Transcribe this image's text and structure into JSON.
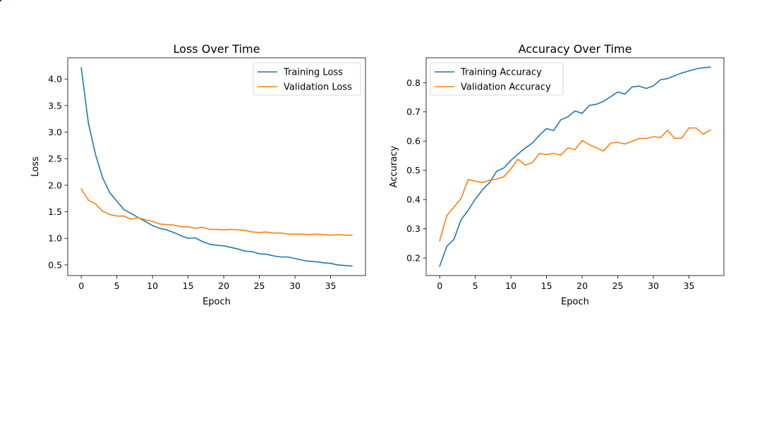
{
  "chart_data": [
    {
      "type": "line",
      "title": "Loss Over Time",
      "xlabel": "Epoch",
      "ylabel": "Loss",
      "xlim": [
        -1.9,
        39.9
      ],
      "ylim": [
        0.3,
        4.4
      ],
      "xticks": [
        0,
        5,
        10,
        15,
        20,
        25,
        30,
        35
      ],
      "yticks": [
        0.5,
        1.0,
        1.5,
        2.0,
        2.5,
        3.0,
        3.5,
        4.0
      ],
      "ytick_labels": [
        "0.5",
        "1.0",
        "1.5",
        "2.0",
        "2.5",
        "3.0",
        "3.5",
        "4.0"
      ],
      "grid": false,
      "legend": "upper-right",
      "x": [
        0,
        1,
        2,
        3,
        4,
        5,
        6,
        7,
        8,
        9,
        10,
        11,
        12,
        13,
        14,
        15,
        16,
        17,
        18,
        19,
        20,
        21,
        22,
        23,
        24,
        25,
        26,
        27,
        28,
        29,
        30,
        31,
        32,
        33,
        34,
        35,
        36,
        37,
        38
      ],
      "series": [
        {
          "name": "Training Loss",
          "color": "#1f77b4",
          "values": [
            4.21,
            3.17,
            2.58,
            2.14,
            1.86,
            1.7,
            1.54,
            1.47,
            1.39,
            1.32,
            1.24,
            1.19,
            1.16,
            1.11,
            1.05,
            1.0,
            1.01,
            0.94,
            0.89,
            0.87,
            0.86,
            0.83,
            0.8,
            0.76,
            0.75,
            0.71,
            0.7,
            0.67,
            0.65,
            0.65,
            0.62,
            0.59,
            0.57,
            0.56,
            0.54,
            0.53,
            0.5,
            0.49,
            0.48
          ]
        },
        {
          "name": "Validation Loss",
          "color": "#ff7f0e",
          "values": [
            1.93,
            1.72,
            1.65,
            1.51,
            1.45,
            1.42,
            1.42,
            1.36,
            1.39,
            1.35,
            1.32,
            1.27,
            1.26,
            1.25,
            1.22,
            1.22,
            1.19,
            1.21,
            1.17,
            1.17,
            1.16,
            1.17,
            1.16,
            1.15,
            1.12,
            1.11,
            1.12,
            1.1,
            1.1,
            1.08,
            1.08,
            1.08,
            1.07,
            1.08,
            1.07,
            1.06,
            1.07,
            1.06,
            1.06
          ]
        }
      ]
    },
    {
      "type": "line",
      "title": "Accuracy Over Time",
      "xlabel": "Epoch",
      "ylabel": "Accuracy",
      "xlim": [
        -1.9,
        39.9
      ],
      "ylim": [
        0.14,
        0.885
      ],
      "xticks": [
        0,
        5,
        10,
        15,
        20,
        25,
        30,
        35
      ],
      "yticks": [
        0.2,
        0.3,
        0.4,
        0.5,
        0.6,
        0.7,
        0.8
      ],
      "ytick_labels": [
        "0.2",
        "0.3",
        "0.4",
        "0.5",
        "0.6",
        "0.7",
        "0.8"
      ],
      "grid": false,
      "legend": "upper-left",
      "x": [
        0,
        1,
        2,
        3,
        4,
        5,
        6,
        7,
        8,
        9,
        10,
        11,
        12,
        13,
        14,
        15,
        16,
        17,
        18,
        19,
        20,
        21,
        22,
        23,
        24,
        25,
        26,
        27,
        28,
        29,
        30,
        31,
        32,
        33,
        34,
        35,
        36,
        37,
        38
      ],
      "series": [
        {
          "name": "Training Accuracy",
          "color": "#1f77b4",
          "values": [
            0.172,
            0.24,
            0.264,
            0.331,
            0.363,
            0.402,
            0.433,
            0.458,
            0.497,
            0.508,
            0.534,
            0.556,
            0.576,
            0.593,
            0.62,
            0.643,
            0.636,
            0.673,
            0.683,
            0.703,
            0.695,
            0.722,
            0.726,
            0.736,
            0.752,
            0.768,
            0.761,
            0.785,
            0.788,
            0.78,
            0.789,
            0.81,
            0.814,
            0.824,
            0.833,
            0.84,
            0.847,
            0.851,
            0.853
          ]
        },
        {
          "name": "Validation Accuracy",
          "color": "#ff7f0e",
          "values": [
            0.259,
            0.345,
            0.374,
            0.404,
            0.468,
            0.463,
            0.458,
            0.466,
            0.47,
            0.478,
            0.505,
            0.538,
            0.518,
            0.526,
            0.558,
            0.554,
            0.558,
            0.552,
            0.577,
            0.571,
            0.602,
            0.588,
            0.577,
            0.566,
            0.593,
            0.596,
            0.59,
            0.599,
            0.609,
            0.609,
            0.615,
            0.612,
            0.637,
            0.609,
            0.611,
            0.645,
            0.645,
            0.623,
            0.638
          ]
        }
      ]
    }
  ]
}
